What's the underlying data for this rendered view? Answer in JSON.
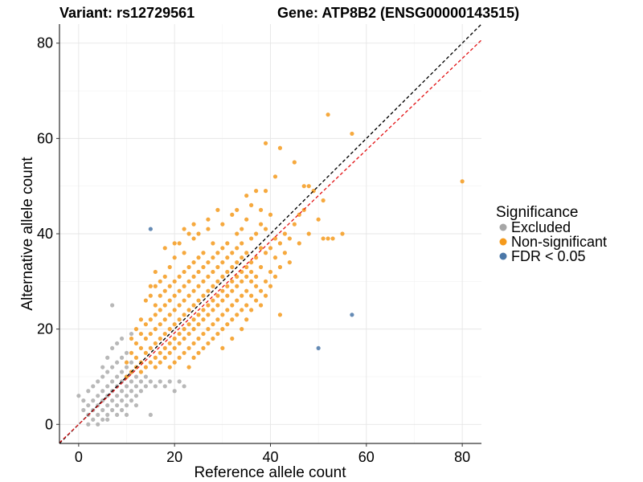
{
  "chart_data": {
    "type": "scatter",
    "title_left": "Variant: rs12729561",
    "title_right": "Gene: ATP8B2 (ENSG00000143515)",
    "xlabel": "Reference allele count",
    "ylabel": "Alternative allele count",
    "xlim": [
      -4,
      84
    ],
    "ylim": [
      -4,
      84
    ],
    "xticks": [
      0,
      20,
      40,
      60,
      80
    ],
    "yticks": [
      0,
      20,
      40,
      60,
      80
    ],
    "grid": true,
    "legend": {
      "title": "Significance",
      "placement": "right",
      "entries": [
        {
          "label": "Excluded",
          "color": "#a6a6a6"
        },
        {
          "label": "Non-significant",
          "color": "#f59a1c"
        },
        {
          "label": "FDR < 0.05",
          "color": "#4a77a8"
        }
      ]
    },
    "reference_lines": [
      {
        "kind": "identity",
        "slope": 1.0,
        "color": "#000000",
        "style": "dashed"
      },
      {
        "kind": "fit",
        "slope": 0.96,
        "color": "#e31a1c",
        "style": "dashed"
      }
    ],
    "series": [
      {
        "name": "Excluded",
        "color": "#a6a6a6",
        "points": [
          [
            0,
            6
          ],
          [
            1,
            3
          ],
          [
            1,
            5
          ],
          [
            2,
            2
          ],
          [
            2,
            4
          ],
          [
            2,
            7
          ],
          [
            3,
            1
          ],
          [
            3,
            3
          ],
          [
            3,
            5
          ],
          [
            3,
            8
          ],
          [
            4,
            2
          ],
          [
            4,
            4
          ],
          [
            4,
            6
          ],
          [
            4,
            9
          ],
          [
            5,
            1
          ],
          [
            5,
            3
          ],
          [
            5,
            5
          ],
          [
            5,
            7
          ],
          [
            5,
            10
          ],
          [
            6,
            2
          ],
          [
            6,
            4
          ],
          [
            6,
            6
          ],
          [
            6,
            8
          ],
          [
            6,
            11
          ],
          [
            7,
            3
          ],
          [
            7,
            5
          ],
          [
            7,
            7
          ],
          [
            7,
            9
          ],
          [
            7,
            12
          ],
          [
            7,
            25
          ],
          [
            8,
            2
          ],
          [
            8,
            4
          ],
          [
            8,
            6
          ],
          [
            8,
            8
          ],
          [
            8,
            10
          ],
          [
            8,
            13
          ],
          [
            9,
            3
          ],
          [
            9,
            5
          ],
          [
            9,
            7
          ],
          [
            9,
            9
          ],
          [
            9,
            11
          ],
          [
            9,
            14
          ],
          [
            10,
            4
          ],
          [
            10,
            6
          ],
          [
            10,
            8
          ],
          [
            10,
            10
          ],
          [
            10,
            12
          ],
          [
            10,
            15
          ],
          [
            11,
            5
          ],
          [
            11,
            7
          ],
          [
            11,
            9
          ],
          [
            11,
            11
          ],
          [
            11,
            13
          ],
          [
            12,
            6
          ],
          [
            12,
            8
          ],
          [
            12,
            10
          ],
          [
            13,
            7
          ],
          [
            13,
            9
          ],
          [
            14,
            8
          ],
          [
            14,
            10
          ],
          [
            15,
            2
          ],
          [
            15,
            9
          ],
          [
            16,
            8
          ],
          [
            17,
            9
          ],
          [
            18,
            8
          ],
          [
            19,
            9
          ],
          [
            20,
            7
          ],
          [
            21,
            9
          ],
          [
            22,
            8
          ],
          [
            4,
            0
          ],
          [
            6,
            1
          ],
          [
            2,
            0
          ],
          [
            12,
            4
          ],
          [
            10,
            2
          ],
          [
            5,
            12
          ],
          [
            6,
            14
          ],
          [
            8,
            17
          ],
          [
            9,
            18
          ],
          [
            11,
            19
          ],
          [
            7,
            16
          ]
        ]
      },
      {
        "name": "Non-significant",
        "color": "#f59a1c",
        "points": [
          [
            10,
            10
          ],
          [
            10,
            13
          ],
          [
            11,
            11
          ],
          [
            11,
            15
          ],
          [
            11,
            18
          ],
          [
            12,
            12
          ],
          [
            12,
            14
          ],
          [
            12,
            17
          ],
          [
            12,
            20
          ],
          [
            13,
            11
          ],
          [
            13,
            13
          ],
          [
            13,
            16
          ],
          [
            13,
            19
          ],
          [
            13,
            22
          ],
          [
            14,
            12
          ],
          [
            14,
            15
          ],
          [
            14,
            18
          ],
          [
            14,
            21
          ],
          [
            14,
            26
          ],
          [
            15,
            13
          ],
          [
            15,
            16
          ],
          [
            15,
            19
          ],
          [
            15,
            22
          ],
          [
            15,
            27
          ],
          [
            15,
            29
          ],
          [
            16,
            12
          ],
          [
            16,
            14
          ],
          [
            16,
            17
          ],
          [
            16,
            20
          ],
          [
            16,
            23
          ],
          [
            16,
            25
          ],
          [
            16,
            29
          ],
          [
            17,
            13
          ],
          [
            17,
            15
          ],
          [
            17,
            18
          ],
          [
            17,
            21
          ],
          [
            17,
            24
          ],
          [
            17,
            27
          ],
          [
            17,
            30
          ],
          [
            18,
            14
          ],
          [
            18,
            16
          ],
          [
            18,
            19
          ],
          [
            18,
            22
          ],
          [
            18,
            25
          ],
          [
            18,
            28
          ],
          [
            18,
            31
          ],
          [
            19,
            12
          ],
          [
            19,
            15
          ],
          [
            19,
            17
          ],
          [
            19,
            20
          ],
          [
            19,
            23
          ],
          [
            19,
            26
          ],
          [
            19,
            29
          ],
          [
            19,
            33
          ],
          [
            20,
            13
          ],
          [
            20,
            16
          ],
          [
            20,
            18
          ],
          [
            20,
            21
          ],
          [
            20,
            24
          ],
          [
            20,
            27
          ],
          [
            20,
            30
          ],
          [
            20,
            35
          ],
          [
            21,
            14
          ],
          [
            21,
            17
          ],
          [
            21,
            19
          ],
          [
            21,
            22
          ],
          [
            21,
            25
          ],
          [
            21,
            28
          ],
          [
            21,
            31
          ],
          [
            21,
            38
          ],
          [
            22,
            15
          ],
          [
            22,
            18
          ],
          [
            22,
            20
          ],
          [
            22,
            23
          ],
          [
            22,
            26
          ],
          [
            22,
            29
          ],
          [
            22,
            32
          ],
          [
            22,
            36
          ],
          [
            23,
            12
          ],
          [
            23,
            16
          ],
          [
            23,
            19
          ],
          [
            23,
            21
          ],
          [
            23,
            24
          ],
          [
            23,
            27
          ],
          [
            23,
            30
          ],
          [
            23,
            33
          ],
          [
            23,
            40
          ],
          [
            24,
            14
          ],
          [
            24,
            17
          ],
          [
            24,
            20
          ],
          [
            24,
            22
          ],
          [
            24,
            25
          ],
          [
            24,
            28
          ],
          [
            24,
            31
          ],
          [
            24,
            34
          ],
          [
            24,
            39
          ],
          [
            25,
            15
          ],
          [
            25,
            18
          ],
          [
            25,
            21
          ],
          [
            25,
            23
          ],
          [
            25,
            26
          ],
          [
            25,
            29
          ],
          [
            25,
            32
          ],
          [
            25,
            35
          ],
          [
            25,
            40
          ],
          [
            26,
            16
          ],
          [
            26,
            19
          ],
          [
            26,
            22
          ],
          [
            26,
            24
          ],
          [
            26,
            27
          ],
          [
            26,
            30
          ],
          [
            26,
            33
          ],
          [
            26,
            36
          ],
          [
            27,
            17
          ],
          [
            27,
            20
          ],
          [
            27,
            23
          ],
          [
            27,
            25
          ],
          [
            27,
            28
          ],
          [
            27,
            31
          ],
          [
            27,
            34
          ],
          [
            27,
            41
          ],
          [
            28,
            18
          ],
          [
            28,
            21
          ],
          [
            28,
            24
          ],
          [
            28,
            26
          ],
          [
            28,
            29
          ],
          [
            28,
            32
          ],
          [
            28,
            35
          ],
          [
            28,
            38
          ],
          [
            29,
            19
          ],
          [
            29,
            22
          ],
          [
            29,
            25
          ],
          [
            29,
            27
          ],
          [
            29,
            30
          ],
          [
            29,
            33
          ],
          [
            29,
            36
          ],
          [
            30,
            16
          ],
          [
            30,
            20
          ],
          [
            30,
            23
          ],
          [
            30,
            26
          ],
          [
            30,
            28
          ],
          [
            30,
            31
          ],
          [
            30,
            34
          ],
          [
            30,
            37
          ],
          [
            30,
            42
          ],
          [
            31,
            21
          ],
          [
            31,
            24
          ],
          [
            31,
            27
          ],
          [
            31,
            29
          ],
          [
            31,
            32
          ],
          [
            31,
            35
          ],
          [
            31,
            38
          ],
          [
            32,
            18
          ],
          [
            32,
            22
          ],
          [
            32,
            25
          ],
          [
            32,
            28
          ],
          [
            32,
            30
          ],
          [
            32,
            33
          ],
          [
            32,
            36
          ],
          [
            32,
            44
          ],
          [
            33,
            23
          ],
          [
            33,
            26
          ],
          [
            33,
            29
          ],
          [
            33,
            31
          ],
          [
            33,
            34
          ],
          [
            33,
            37
          ],
          [
            33,
            40
          ],
          [
            34,
            20
          ],
          [
            34,
            24
          ],
          [
            34,
            27
          ],
          [
            34,
            30
          ],
          [
            34,
            32
          ],
          [
            34,
            35
          ],
          [
            34,
            38
          ],
          [
            34,
            41
          ],
          [
            35,
            22
          ],
          [
            35,
            25
          ],
          [
            35,
            28
          ],
          [
            35,
            31
          ],
          [
            35,
            33
          ],
          [
            35,
            36
          ],
          [
            35,
            43
          ],
          [
            36,
            24
          ],
          [
            36,
            27
          ],
          [
            36,
            30
          ],
          [
            36,
            32
          ],
          [
            36,
            34
          ],
          [
            36,
            39
          ],
          [
            36,
            46
          ],
          [
            37,
            26
          ],
          [
            37,
            29
          ],
          [
            37,
            31
          ],
          [
            37,
            35
          ],
          [
            37,
            40
          ],
          [
            38,
            25
          ],
          [
            38,
            28
          ],
          [
            38,
            33
          ],
          [
            38,
            37
          ],
          [
            38,
            42
          ],
          [
            39,
            27
          ],
          [
            39,
            30
          ],
          [
            39,
            36
          ],
          [
            39,
            41
          ],
          [
            39,
            49
          ],
          [
            40,
            29
          ],
          [
            40,
            32
          ],
          [
            40,
            37
          ],
          [
            40,
            44
          ],
          [
            41,
            31
          ],
          [
            41,
            35
          ],
          [
            41,
            39
          ],
          [
            41,
            52
          ],
          [
            42,
            23
          ],
          [
            42,
            33
          ],
          [
            42,
            38
          ],
          [
            42,
            58
          ],
          [
            43,
            36
          ],
          [
            43,
            40
          ],
          [
            44,
            34
          ],
          [
            44,
            39
          ],
          [
            45,
            42
          ],
          [
            45,
            55
          ],
          [
            46,
            38
          ],
          [
            46,
            44
          ],
          [
            47,
            45
          ],
          [
            47,
            50
          ],
          [
            48,
            40
          ],
          [
            48,
            50
          ],
          [
            49,
            49
          ],
          [
            50,
            43
          ],
          [
            51,
            47
          ],
          [
            51,
            39
          ],
          [
            52,
            65
          ],
          [
            52,
            39
          ],
          [
            53,
            39
          ],
          [
            55,
            40
          ],
          [
            57,
            61
          ],
          [
            80,
            51
          ],
          [
            39,
            59
          ],
          [
            37,
            49
          ],
          [
            38,
            45
          ],
          [
            35,
            48
          ],
          [
            33,
            45
          ],
          [
            29,
            45
          ],
          [
            27,
            43
          ],
          [
            24,
            42
          ],
          [
            22,
            41
          ],
          [
            20,
            38
          ],
          [
            18,
            37
          ],
          [
            16,
            32
          ]
        ]
      },
      {
        "name": "FDR < 0.05",
        "color": "#4a77a8",
        "points": [
          [
            15,
            41
          ],
          [
            50,
            16
          ],
          [
            57,
            23
          ]
        ]
      }
    ]
  }
}
